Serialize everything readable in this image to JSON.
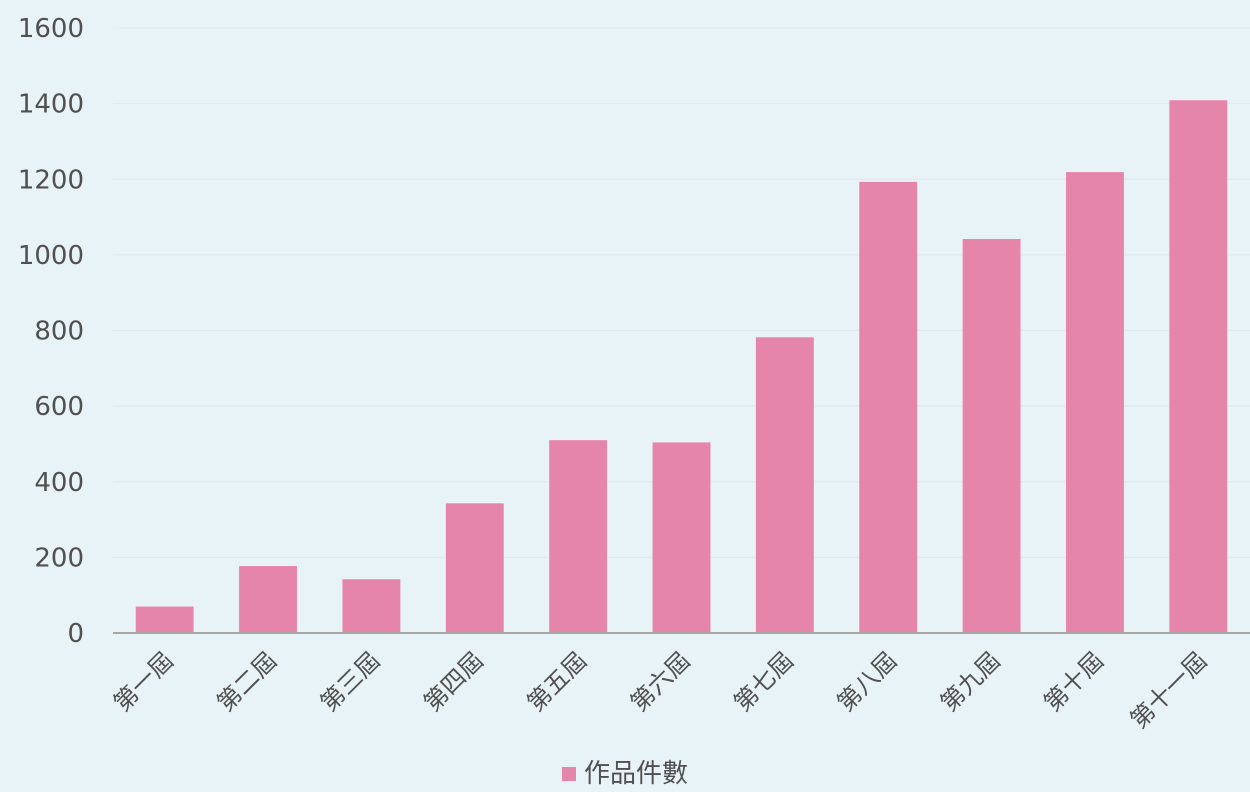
{
  "chart_data": {
    "type": "bar",
    "categories": [
      "第一屆",
      "第二屆",
      "第三屆",
      "第四屆",
      "第五屆",
      "第六屆",
      "第七屆",
      "第八屆",
      "第九屆",
      "第十屆",
      "第十一屆"
    ],
    "series": [
      {
        "name": "作品件數",
        "values": [
          70,
          177,
          142,
          343,
          510,
          504,
          782,
          1193,
          1042,
          1219,
          1409
        ],
        "color": "#e685aa"
      }
    ],
    "ylim": [
      0,
      1600
    ],
    "yticks": [
      0,
      200,
      400,
      600,
      800,
      1000,
      1200,
      1400,
      1600
    ],
    "grid": true,
    "legend_position": "bottom",
    "colors": {
      "background": "#e8f3f7",
      "axis": "#a6a6a6",
      "grid": "#dfe8ec",
      "text": "#505050"
    }
  }
}
